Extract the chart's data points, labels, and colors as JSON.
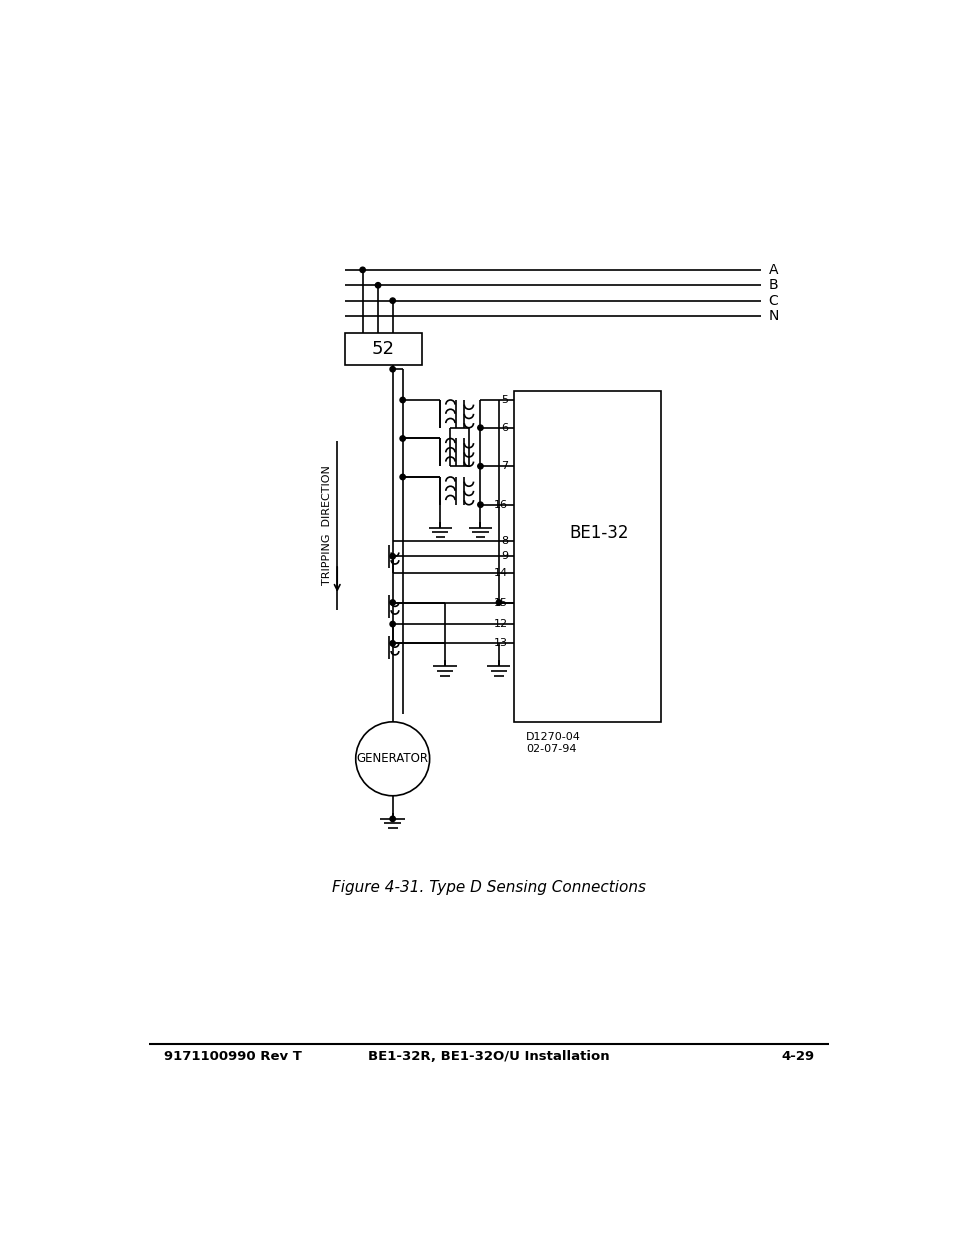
{
  "title": "Figure 4-31. Type D Sensing Connections",
  "footer_left": "9171100990 Rev T",
  "footer_center": "BE1-32R, BE1-32O/U Installation",
  "footer_right": "4-29",
  "diagram_ref1": "D1270-04",
  "diagram_ref2": "02-07-94",
  "be132_label": "BE1-32",
  "breaker_label": "52",
  "generator_label": "GENERATOR",
  "tripping_direction": "TRIPPING  DIRECTION",
  "bus_labels": [
    "A",
    "B",
    "C",
    "N"
  ],
  "bg_color": "#ffffff",
  "line_color": "#000000",
  "lw": 1.2
}
